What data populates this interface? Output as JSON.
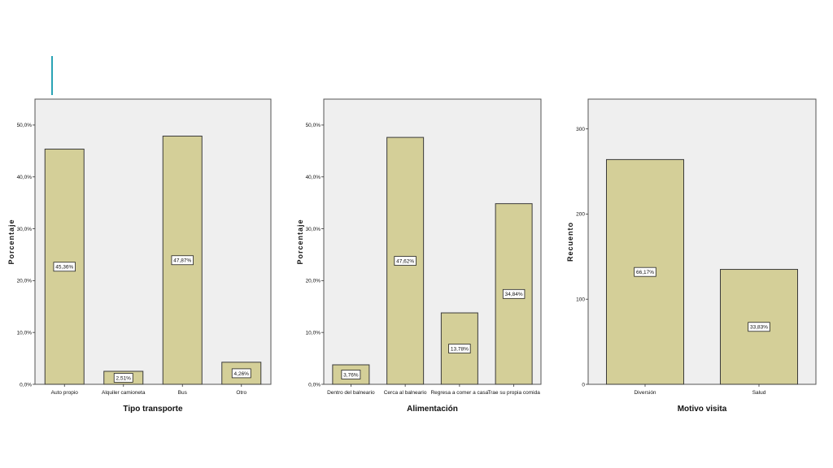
{
  "colors": {
    "plot_bg": "#efefef",
    "bar_fill": "#d4cf98",
    "bar_stroke": "#3a3a3a",
    "accent": "#2aa3b5"
  },
  "chart_data": [
    {
      "type": "bar",
      "xlabel": "Tipo transporte",
      "ylabel": "Porcentaje",
      "ylim": [
        0,
        55
      ],
      "yticks": [
        0,
        10,
        20,
        30,
        40,
        50
      ],
      "ytick_labels": [
        "0,0%",
        "10,0%",
        "20,0%",
        "30,0%",
        "40,0%",
        "50,0%"
      ],
      "categories": [
        "Auto propio",
        "Alquiler camioneta",
        "Bus",
        "Otro"
      ],
      "values": [
        45.36,
        2.51,
        47.87,
        4.26
      ],
      "data_labels": [
        "45,36%",
        "2,51%",
        "47,87%",
        "4,26%"
      ]
    },
    {
      "type": "bar",
      "xlabel": "Alimentación",
      "ylabel": "Porcentaje",
      "ylim": [
        0,
        55
      ],
      "yticks": [
        0,
        10,
        20,
        30,
        40,
        50
      ],
      "ytick_labels": [
        "0,0%",
        "10,0%",
        "20,0%",
        "30,0%",
        "40,0%",
        "50,0%"
      ],
      "categories": [
        "Dentro del balneario",
        "Cerca al balneario",
        "Regresa a comer a casa",
        "Trae su propia comida"
      ],
      "values": [
        3.76,
        47.62,
        13.78,
        34.84
      ],
      "data_labels": [
        "3,76%",
        "47,62%",
        "13,78%",
        "34,84%"
      ]
    },
    {
      "type": "bar",
      "xlabel": "Motivo visita",
      "ylabel": "Recuento",
      "ylim": [
        0,
        335
      ],
      "yticks": [
        0,
        100,
        200,
        300
      ],
      "ytick_labels": [
        "0",
        "100",
        "200",
        "300"
      ],
      "categories": [
        "Diversión",
        "Salud"
      ],
      "values": [
        264,
        135
      ],
      "data_labels": [
        "66,17%",
        "33,83%"
      ]
    }
  ]
}
